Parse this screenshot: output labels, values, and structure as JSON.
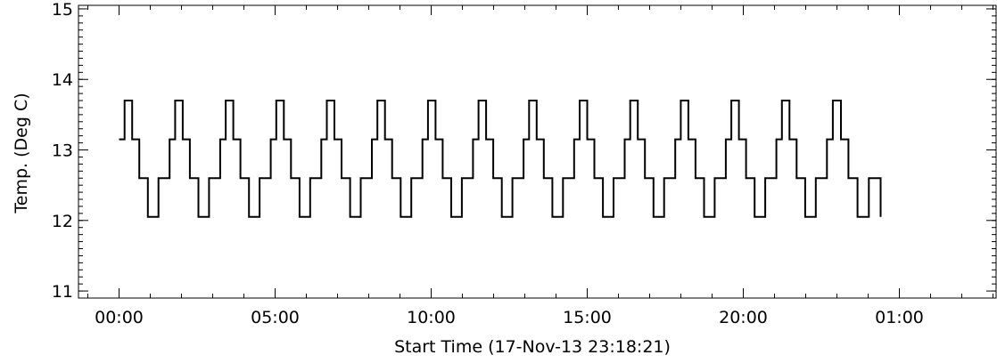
{
  "chart_data": {
    "type": "line",
    "title": "",
    "xlabel": "Start Time (17-Nov-13 23:18:21)",
    "ylabel": "Temp. (Deg C)",
    "x_unit": "hours since start",
    "xlim": [
      -1.3,
      28.1
    ],
    "ylim": [
      10.9,
      15.05
    ],
    "x_ticks": [
      {
        "value": 0,
        "label": "00:00"
      },
      {
        "value": 5,
        "label": "05:00"
      },
      {
        "value": 10,
        "label": "10:00"
      },
      {
        "value": 15,
        "label": "15:00"
      },
      {
        "value": 20,
        "label": "20:00"
      },
      {
        "value": 25,
        "label": "01:00"
      }
    ],
    "y_ticks": [
      {
        "value": 11,
        "label": "11"
      },
      {
        "value": 12,
        "label": "12"
      },
      {
        "value": 13,
        "label": "13"
      },
      {
        "value": 14,
        "label": "14"
      },
      {
        "value": 15,
        "label": "15"
      }
    ],
    "grid": false,
    "series": [
      {
        "levels": [
          13.15,
          13.7,
          13.15,
          12.6,
          12.05
        ],
        "cycle_start_hours": [
          0,
          1.62,
          3.24,
          4.86,
          6.48,
          8.1,
          9.72,
          11.34,
          12.96,
          14.58,
          16.2,
          17.82,
          19.44,
          21.06,
          22.68
        ],
        "end_hours": 24.4,
        "end_value": 12.05
      }
    ]
  }
}
